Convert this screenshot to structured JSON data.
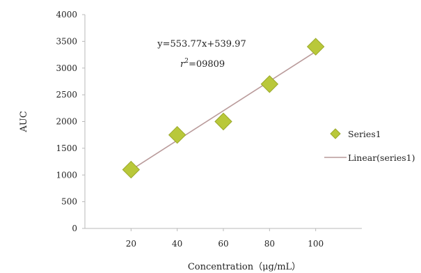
{
  "chart_data": {
    "type": "scatter",
    "x": [
      20,
      40,
      60,
      80,
      100
    ],
    "series": [
      {
        "name": "Series1",
        "values": [
          1100,
          1750,
          2000,
          2700,
          3400
        ],
        "color": "#b9c83a",
        "marker": "diamond"
      },
      {
        "name": "Linear(series1)",
        "kind": "trendline",
        "slope": 27.6885,
        "intercept": 539.97,
        "color": "#b99a9a"
      }
    ],
    "xticks": [
      "20",
      "40",
      "60",
      "80",
      "100"
    ],
    "yticks": [
      "0",
      "500",
      "1000",
      "1500",
      "2000",
      "2500",
      "3000",
      "3500",
      "4000"
    ],
    "xlim": [
      0,
      120
    ],
    "ylim": [
      0,
      4000
    ],
    "xlabel": "Concentration（μg/mL）",
    "ylabel": "AUC",
    "annotations": {
      "equation": "y=553.77x+539.97",
      "r2_label": "r",
      "r2_sup": "2",
      "r2_value": "=09809"
    },
    "legend": {
      "placement": "right",
      "entries": [
        "Series1",
        "Linear(series1)"
      ]
    },
    "grid": false
  }
}
